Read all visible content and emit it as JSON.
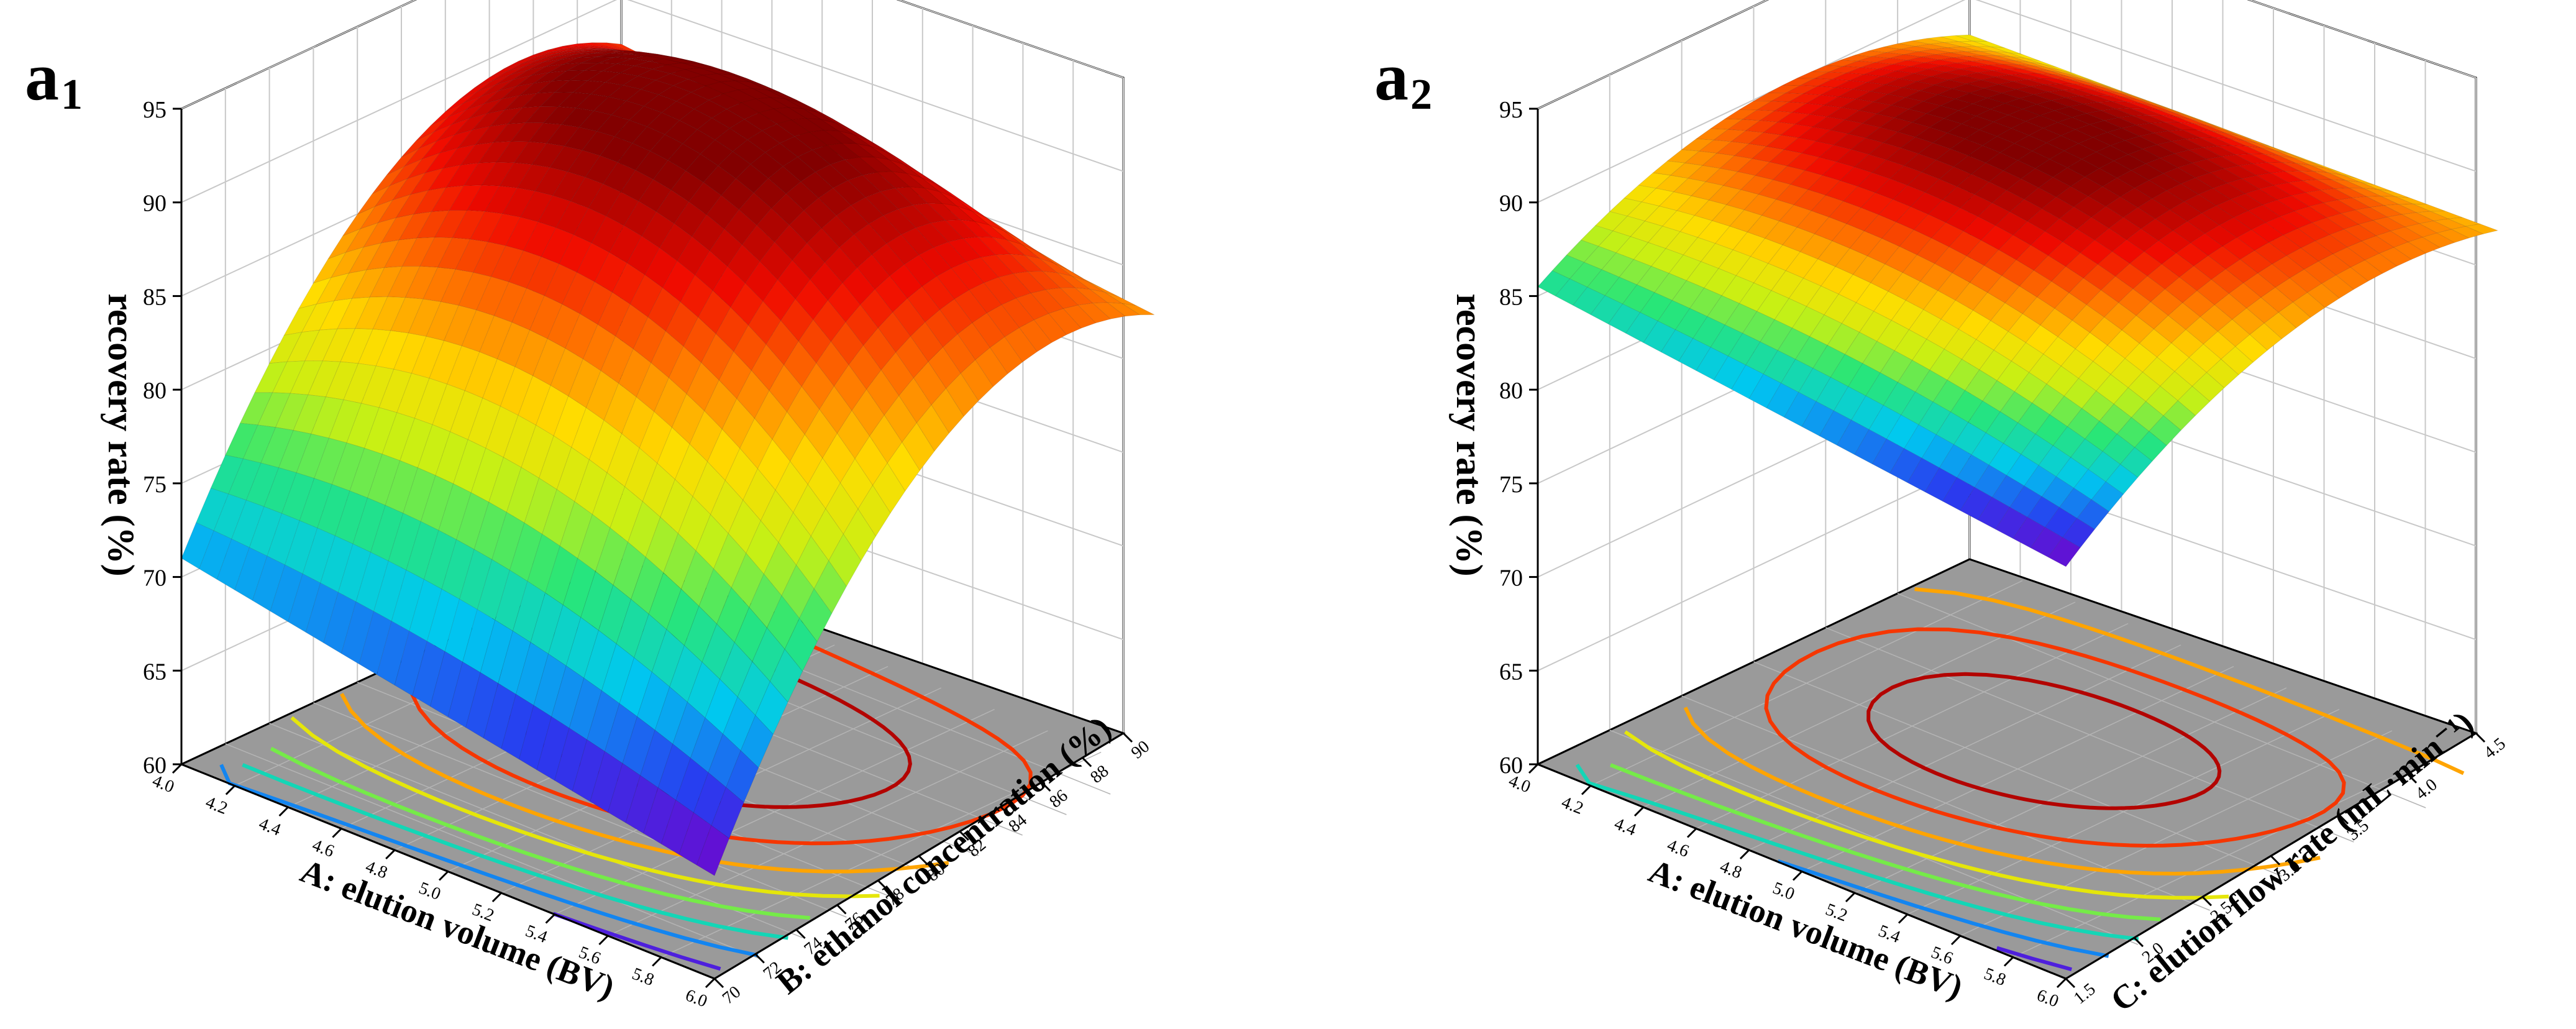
{
  "chart_data": [
    {
      "type": "surface3d",
      "panel_label": "a",
      "panel_sub": "1",
      "x_axis": {
        "label": "A:  elution volume (BV)",
        "range": [
          4.0,
          6.0
        ],
        "ticks": [
          "4.0",
          "4.2",
          "4.4",
          "4.6",
          "4.8",
          "5.0",
          "5.2",
          "5.4",
          "5.6",
          "5.8",
          "6.0"
        ]
      },
      "y_axis": {
        "label": "B:  ethanol concentration (%)",
        "range": [
          70,
          90
        ],
        "ticks": [
          "70",
          "72",
          "74",
          "76",
          "78",
          "80",
          "82",
          "84",
          "86",
          "88",
          "90"
        ]
      },
      "z_axis": {
        "label": "recovery rate (%)",
        "range": [
          60,
          95
        ],
        "ticks": [
          "60",
          "65",
          "70",
          "75",
          "80",
          "85",
          "90",
          "95"
        ]
      },
      "corner_values": {
        "x4.0_y70": 71,
        "x4.0_y90": 87.5,
        "x6.0_y70": 65.5,
        "x6.0_y90": 84.5
      },
      "peak": 92.5,
      "contour_floor": "gray with colored contour ellipses"
    },
    {
      "type": "surface3d",
      "panel_label": "a",
      "panel_sub": "2",
      "x_axis": {
        "label": "A:  elution volume (BV)",
        "range": [
          4.0,
          6.0
        ],
        "ticks": [
          "4.0",
          "4.2",
          "4.4",
          "4.6",
          "4.8",
          "5.0",
          "5.2",
          "5.4",
          "5.6",
          "5.8",
          "6.0"
        ]
      },
      "y_axis": {
        "label": "C:  elution flow rate (mL·min⁻¹)",
        "range": [
          1.5,
          4.5
        ],
        "ticks": [
          "1.5",
          "2.0",
          "2.5",
          "3.0",
          "3.5",
          "4.0",
          "4.5"
        ]
      },
      "z_axis": {
        "label": "recovery rate (%)",
        "range": [
          60,
          95
        ],
        "ticks": [
          "60",
          "65",
          "70",
          "75",
          "80",
          "85",
          "90",
          "95"
        ]
      },
      "corner_values": {
        "x4.0_y1.5": 85.5,
        "x4.0_y4.5": 88,
        "x6.0_y1.5": 82,
        "x6.0_y4.5": 89
      },
      "peak": 92.5,
      "contour_floor": "gray with colored contour ellipses"
    }
  ]
}
